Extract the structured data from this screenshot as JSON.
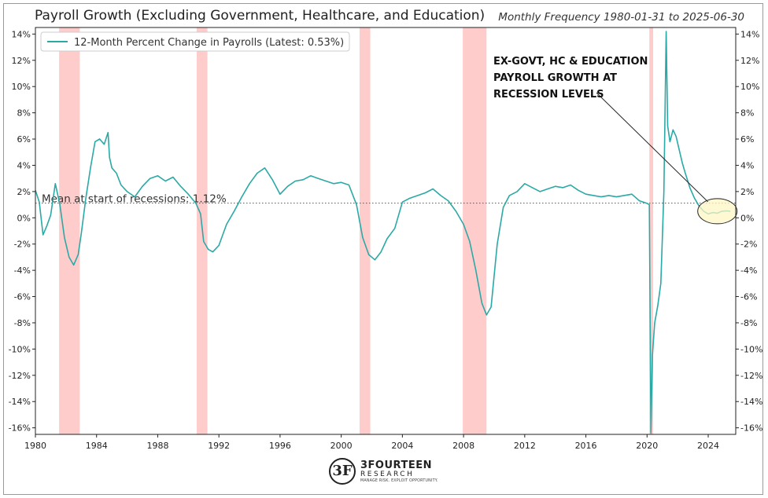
{
  "chart_data": {
    "type": "line",
    "title": "Payroll Growth (Excluding Government, Healthcare, and Education)",
    "subtitle": "Monthly Frequency 1980-01-31 to 2025-06-30",
    "xlabel": "",
    "ylabel": "",
    "xlim": [
      1980,
      2025.8
    ],
    "ylim": [
      -16.5,
      14.5
    ],
    "x_ticks": [
      1980,
      1984,
      1988,
      1992,
      1996,
      2000,
      2004,
      2008,
      2012,
      2016,
      2020,
      2024
    ],
    "y_ticks": [
      14,
      12,
      10,
      8,
      6,
      4,
      2,
      0,
      -2,
      -4,
      -6,
      -8,
      -10,
      -12,
      -14,
      -16
    ],
    "y_tick_labels": [
      "14%",
      "12%",
      "10%",
      "8%",
      "6%",
      "4%",
      "2%",
      "0%",
      "-2%",
      "-4%",
      "-6%",
      "-8%",
      "-10%",
      "-12%",
      "-14%",
      "-16%"
    ],
    "grid": false,
    "legend_placement": "top-left",
    "line_color": "#2aa9a6",
    "recession_color": "#ffcccc",
    "series": [
      {
        "name": "12-Month Percent Change in Payrolls (Latest: 0.53%)",
        "x": [
          1980.0,
          1980.25,
          1980.5,
          1980.75,
          1981.0,
          1981.3,
          1981.6,
          1981.9,
          1982.2,
          1982.5,
          1982.8,
          1983.0,
          1983.3,
          1983.6,
          1983.9,
          1984.2,
          1984.5,
          1984.75,
          1984.85,
          1985.0,
          1985.3,
          1985.6,
          1986.0,
          1986.5,
          1987.0,
          1987.5,
          1988.0,
          1988.5,
          1989.0,
          1989.5,
          1990.0,
          1990.5,
          1990.8,
          1991.0,
          1991.3,
          1991.6,
          1992.0,
          1992.5,
          1993.0,
          1993.5,
          1994.0,
          1994.5,
          1995.0,
          1995.5,
          1996.0,
          1996.5,
          1997.0,
          1997.5,
          1998.0,
          1998.5,
          1999.0,
          1999.5,
          2000.0,
          2000.5,
          2001.0,
          2001.4,
          2001.8,
          2002.2,
          2002.6,
          2003.0,
          2003.5,
          2004.0,
          2004.5,
          2005.0,
          2005.5,
          2006.0,
          2006.5,
          2007.0,
          2007.5,
          2008.0,
          2008.4,
          2008.8,
          2009.2,
          2009.5,
          2009.8,
          2010.2,
          2010.6,
          2011.0,
          2011.5,
          2012.0,
          2012.5,
          2013.0,
          2013.5,
          2014.0,
          2014.5,
          2015.0,
          2015.5,
          2016.0,
          2016.5,
          2017.0,
          2017.5,
          2018.0,
          2018.5,
          2019.0,
          2019.5,
          2020.0,
          2020.15,
          2020.25,
          2020.35,
          2020.5,
          2020.7,
          2020.9,
          2021.1,
          2021.25,
          2021.35,
          2021.5,
          2021.7,
          2021.9,
          2022.1,
          2022.3,
          2022.5,
          2022.8,
          2023.1,
          2023.4,
          2023.7,
          2024.0,
          2024.3,
          2024.6,
          2024.9,
          2025.2,
          2025.45
        ],
        "values": [
          2.1,
          1.2,
          -1.3,
          -0.6,
          0.2,
          2.6,
          1.0,
          -1.5,
          -3.0,
          -3.6,
          -2.8,
          -1.2,
          1.5,
          3.8,
          5.8,
          6.0,
          5.6,
          6.5,
          4.6,
          3.8,
          3.4,
          2.5,
          2.0,
          1.6,
          2.4,
          3.0,
          3.2,
          2.8,
          3.1,
          2.4,
          1.8,
          1.1,
          0.3,
          -1.8,
          -2.4,
          -2.6,
          -2.1,
          -0.5,
          0.5,
          1.6,
          2.6,
          3.4,
          3.8,
          2.9,
          1.8,
          2.4,
          2.8,
          2.9,
          3.2,
          3.0,
          2.8,
          2.6,
          2.7,
          2.5,
          1.0,
          -1.5,
          -2.8,
          -3.2,
          -2.6,
          -1.6,
          -0.8,
          1.2,
          1.5,
          1.7,
          1.9,
          2.2,
          1.7,
          1.3,
          0.5,
          -0.5,
          -1.8,
          -4.0,
          -6.5,
          -7.4,
          -6.8,
          -2.0,
          0.8,
          1.7,
          2.0,
          2.6,
          2.3,
          2.0,
          2.2,
          2.4,
          2.3,
          2.5,
          2.1,
          1.8,
          1.7,
          1.6,
          1.7,
          1.6,
          1.7,
          1.8,
          1.3,
          1.1,
          1.0,
          -16.4,
          -10.5,
          -8.0,
          -6.7,
          -5.0,
          2.0,
          14.2,
          7.0,
          5.8,
          6.7,
          6.2,
          5.2,
          4.2,
          3.4,
          2.3,
          1.5,
          0.9,
          0.5,
          0.3,
          0.4,
          0.35,
          0.5,
          0.53,
          0.5
        ]
      }
    ],
    "recessions": [
      [
        1981.55,
        1982.9
      ],
      [
        1990.55,
        1991.25
      ],
      [
        2001.2,
        2001.9
      ],
      [
        2007.95,
        2009.5
      ],
      [
        2020.15,
        2020.4
      ]
    ],
    "mean_line": {
      "value": 1.12,
      "label": "Mean at start of recessions: 1.12%"
    },
    "annotation": {
      "lines": [
        "EX-GOVT, HC & EDUCATION",
        "PAYROLL GROWTH AT",
        "RECESSION LEVELS"
      ],
      "target_x": 2024.6,
      "target_y": 0.5
    }
  },
  "branding": {
    "mark": "3F",
    "name": "3FOURTEEN",
    "sub": "RESEARCH",
    "tagline": "MANAGE RISK. EXPLOIT OPPORTUNITY."
  }
}
